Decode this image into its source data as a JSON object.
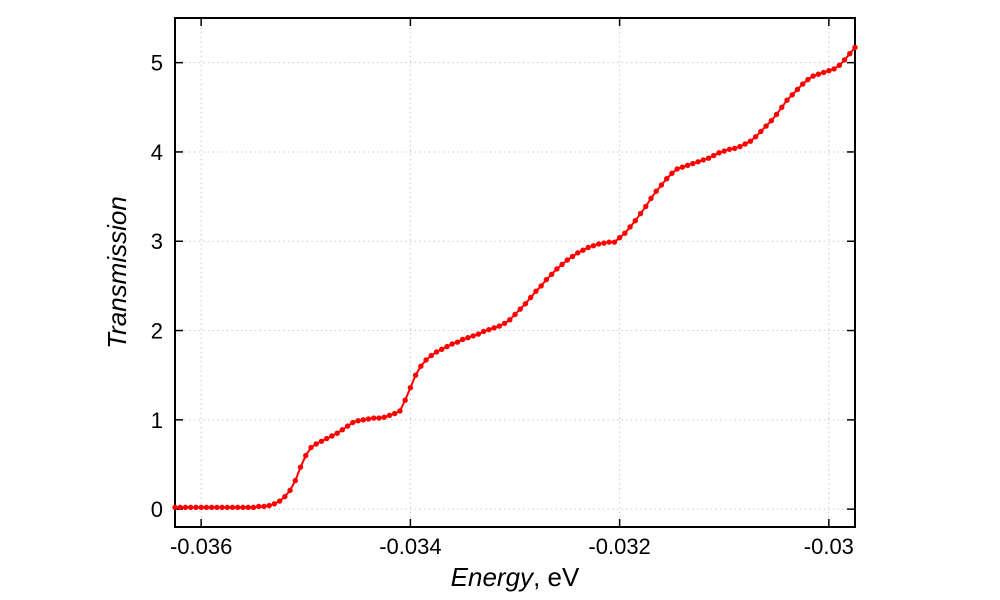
{
  "chart_data": {
    "type": "line",
    "title": "",
    "xlabel_italic": "Energy",
    "xlabel_unit": ", eV",
    "ylabel": "Transmission",
    "xlim": [
      -0.03625,
      -0.02975
    ],
    "ylim": [
      -0.2,
      5.5
    ],
    "x_ticks": {
      "values": [
        -0.036,
        -0.034,
        -0.032,
        -0.03
      ],
      "labels": [
        "-0.036",
        "-0.034",
        "-0.032",
        "-0.03"
      ]
    },
    "y_ticks": {
      "values": [
        0,
        1,
        2,
        3,
        4,
        5
      ],
      "labels": [
        "0",
        "1",
        "2",
        "3",
        "4",
        "5"
      ]
    },
    "grid": "dotted-major-both",
    "legend": "none",
    "marker": "filled-circle",
    "series": [
      {
        "name": "transmission",
        "color": "#ff0000",
        "x": [
          -0.03625,
          -0.0362,
          -0.03615,
          -0.0361,
          -0.03605,
          -0.036,
          -0.03595,
          -0.0359,
          -0.03585,
          -0.0358,
          -0.03575,
          -0.0357,
          -0.03565,
          -0.0356,
          -0.03555,
          -0.0355,
          -0.03545,
          -0.0354,
          -0.03535,
          -0.0353,
          -0.03525,
          -0.0352,
          -0.03515,
          -0.0351,
          -0.03505,
          -0.035,
          -0.03495,
          -0.0349,
          -0.03485,
          -0.0348,
          -0.03475,
          -0.0347,
          -0.03465,
          -0.0346,
          -0.03455,
          -0.0345,
          -0.03445,
          -0.0344,
          -0.03435,
          -0.0343,
          -0.03425,
          -0.0342,
          -0.03415,
          -0.0341,
          -0.03405,
          -0.034,
          -0.03395,
          -0.0339,
          -0.03385,
          -0.0338,
          -0.03375,
          -0.0337,
          -0.03365,
          -0.0336,
          -0.03355,
          -0.0335,
          -0.03345,
          -0.0334,
          -0.03335,
          -0.0333,
          -0.03325,
          -0.0332,
          -0.03315,
          -0.0331,
          -0.03305,
          -0.033,
          -0.03295,
          -0.0329,
          -0.03285,
          -0.0328,
          -0.03275,
          -0.0327,
          -0.03265,
          -0.0326,
          -0.03255,
          -0.0325,
          -0.03245,
          -0.0324,
          -0.03235,
          -0.0323,
          -0.03225,
          -0.0322,
          -0.03215,
          -0.0321,
          -0.03205,
          -0.032,
          -0.03195,
          -0.0319,
          -0.03185,
          -0.0318,
          -0.03175,
          -0.0317,
          -0.03165,
          -0.0316,
          -0.03155,
          -0.0315,
          -0.03145,
          -0.0314,
          -0.03135,
          -0.0313,
          -0.03125,
          -0.0312,
          -0.03115,
          -0.0311,
          -0.03105,
          -0.031,
          -0.03095,
          -0.0309,
          -0.03085,
          -0.0308,
          -0.03075,
          -0.0307,
          -0.03065,
          -0.0306,
          -0.03055,
          -0.0305,
          -0.03045,
          -0.0304,
          -0.03035,
          -0.0303,
          -0.03025,
          -0.0302,
          -0.03015,
          -0.0301,
          -0.03005,
          -0.03,
          -0.02995,
          -0.0299,
          -0.02985,
          -0.0298,
          -0.02975
        ],
        "y": [
          0.02,
          0.02,
          0.02,
          0.02,
          0.02,
          0.02,
          0.02,
          0.02,
          0.02,
          0.02,
          0.02,
          0.02,
          0.02,
          0.02,
          0.02,
          0.02,
          0.03,
          0.03,
          0.04,
          0.06,
          0.09,
          0.14,
          0.21,
          0.32,
          0.47,
          0.6,
          0.69,
          0.73,
          0.76,
          0.79,
          0.82,
          0.85,
          0.89,
          0.93,
          0.97,
          0.99,
          1.0,
          1.01,
          1.02,
          1.02,
          1.03,
          1.05,
          1.07,
          1.1,
          1.22,
          1.36,
          1.5,
          1.6,
          1.67,
          1.72,
          1.76,
          1.79,
          1.82,
          1.85,
          1.87,
          1.9,
          1.92,
          1.94,
          1.96,
          1.99,
          2.01,
          2.03,
          2.05,
          2.08,
          2.12,
          2.18,
          2.24,
          2.3,
          2.37,
          2.44,
          2.5,
          2.57,
          2.63,
          2.69,
          2.74,
          2.79,
          2.83,
          2.87,
          2.9,
          2.93,
          2.95,
          2.97,
          2.98,
          2.99,
          2.99,
          3.04,
          3.09,
          3.16,
          3.23,
          3.31,
          3.39,
          3.48,
          3.56,
          3.63,
          3.7,
          3.76,
          3.81,
          3.83,
          3.85,
          3.87,
          3.89,
          3.91,
          3.93,
          3.96,
          3.99,
          4.01,
          4.03,
          4.04,
          4.06,
          4.09,
          4.12,
          4.17,
          4.23,
          4.29,
          4.35,
          4.42,
          4.5,
          4.58,
          4.64,
          4.7,
          4.76,
          4.81,
          4.85,
          4.87,
          4.89,
          4.91,
          4.93,
          4.97,
          5.03,
          5.1,
          5.17
        ]
      }
    ]
  },
  "styles": {
    "background": "#ffffff",
    "accent": "#ff0000",
    "grid_color": "#c8c8c8",
    "axis_color": "#000000"
  }
}
